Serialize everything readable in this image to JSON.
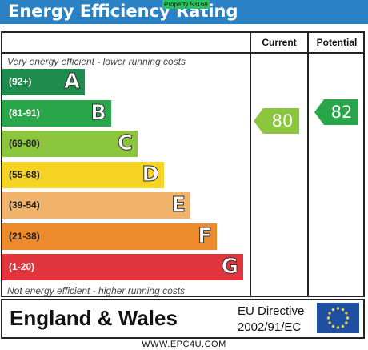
{
  "header": {
    "title": "Energy Efficiency Rating",
    "stamp": "Property 53168"
  },
  "columns": {
    "current": "Current",
    "potential": "Potential"
  },
  "notes": {
    "top": "Very energy efficient - lower running costs",
    "bottom": "Not energy efficient - higher running costs"
  },
  "chart_data": {
    "type": "bar",
    "bands": [
      {
        "letter": "A",
        "range": "(92+)",
        "color": "#1f8b4c"
      },
      {
        "letter": "B",
        "range": "(81-91)",
        "color": "#2aa64a"
      },
      {
        "letter": "C",
        "range": "(69-80)",
        "color": "#8cc63f"
      },
      {
        "letter": "D",
        "range": "(55-68)",
        "color": "#f4d325"
      },
      {
        "letter": "E",
        "range": "(39-54)",
        "color": "#f2b46c"
      },
      {
        "letter": "F",
        "range": "(21-38)",
        "color": "#ec8a2c"
      },
      {
        "letter": "G",
        "range": "(1-20)",
        "color": "#e0353d"
      }
    ],
    "current": {
      "value": 80,
      "band": "C",
      "color": "#8cc63f"
    },
    "potential": {
      "value": 82,
      "band": "B",
      "color": "#2aa64a"
    }
  },
  "footer": {
    "country": "England & Wales",
    "directive_line1": "EU Directive",
    "directive_line2": "2002/91/EC",
    "website": "WWW.EPC4U.COM"
  }
}
